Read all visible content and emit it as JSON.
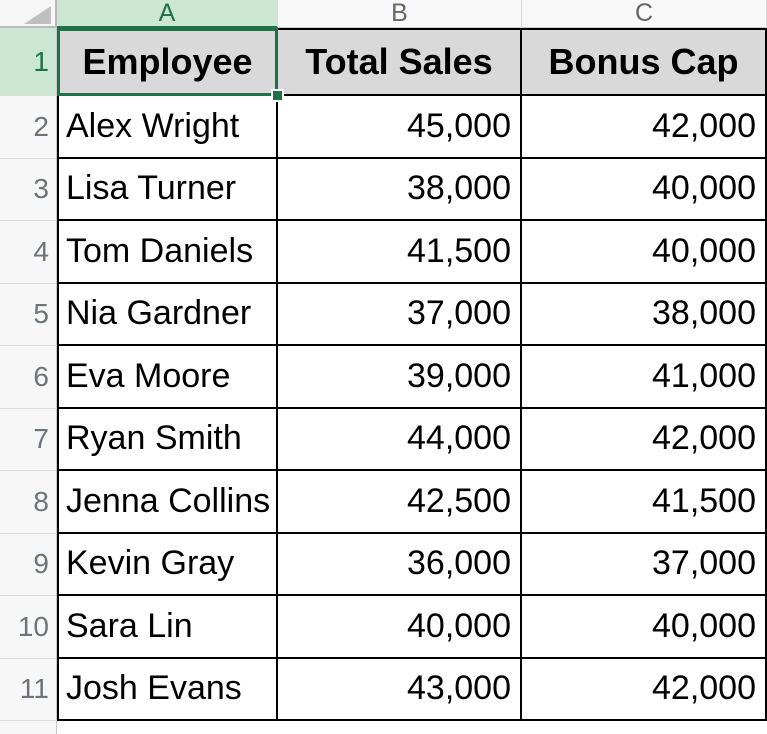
{
  "sheet": {
    "selection": {
      "active_cell": "A1",
      "selected_column": "A",
      "selected_row": "1"
    },
    "colors": {
      "excel_green": "#1F7246",
      "selection_tint_green": "#CBE7D4",
      "header_cell_fill": "#D9D9D9",
      "grid_line": "#000000",
      "gutter_fill": "#F7F7F7"
    },
    "columns": [
      {
        "letter": "A"
      },
      {
        "letter": "B"
      },
      {
        "letter": "C"
      }
    ],
    "header_row": {
      "number": "1",
      "cells": [
        "Employee",
        "Total Sales",
        "Bonus Cap"
      ]
    },
    "rows": [
      {
        "number": "2",
        "name": "Alex Wright",
        "total_sales": "45,000",
        "bonus_cap": "42,000"
      },
      {
        "number": "3",
        "name": "Lisa Turner",
        "total_sales": "38,000",
        "bonus_cap": "40,000"
      },
      {
        "number": "4",
        "name": "Tom Daniels",
        "total_sales": "41,500",
        "bonus_cap": "40,000"
      },
      {
        "number": "5",
        "name": "Nia Gardner",
        "total_sales": "37,000",
        "bonus_cap": "38,000"
      },
      {
        "number": "6",
        "name": "Eva Moore",
        "total_sales": "39,000",
        "bonus_cap": "41,000"
      },
      {
        "number": "7",
        "name": "Ryan Smith",
        "total_sales": "44,000",
        "bonus_cap": "42,000"
      },
      {
        "number": "8",
        "name": "Jenna Collins",
        "total_sales": "42,500",
        "bonus_cap": "41,500"
      },
      {
        "number": "9",
        "name": "Kevin Gray",
        "total_sales": "36,000",
        "bonus_cap": "37,000"
      },
      {
        "number": "10",
        "name": "Sara Lin",
        "total_sales": "40,000",
        "bonus_cap": "40,000"
      },
      {
        "number": "11",
        "name": "Josh Evans",
        "total_sales": "43,000",
        "bonus_cap": "42,000"
      }
    ]
  }
}
